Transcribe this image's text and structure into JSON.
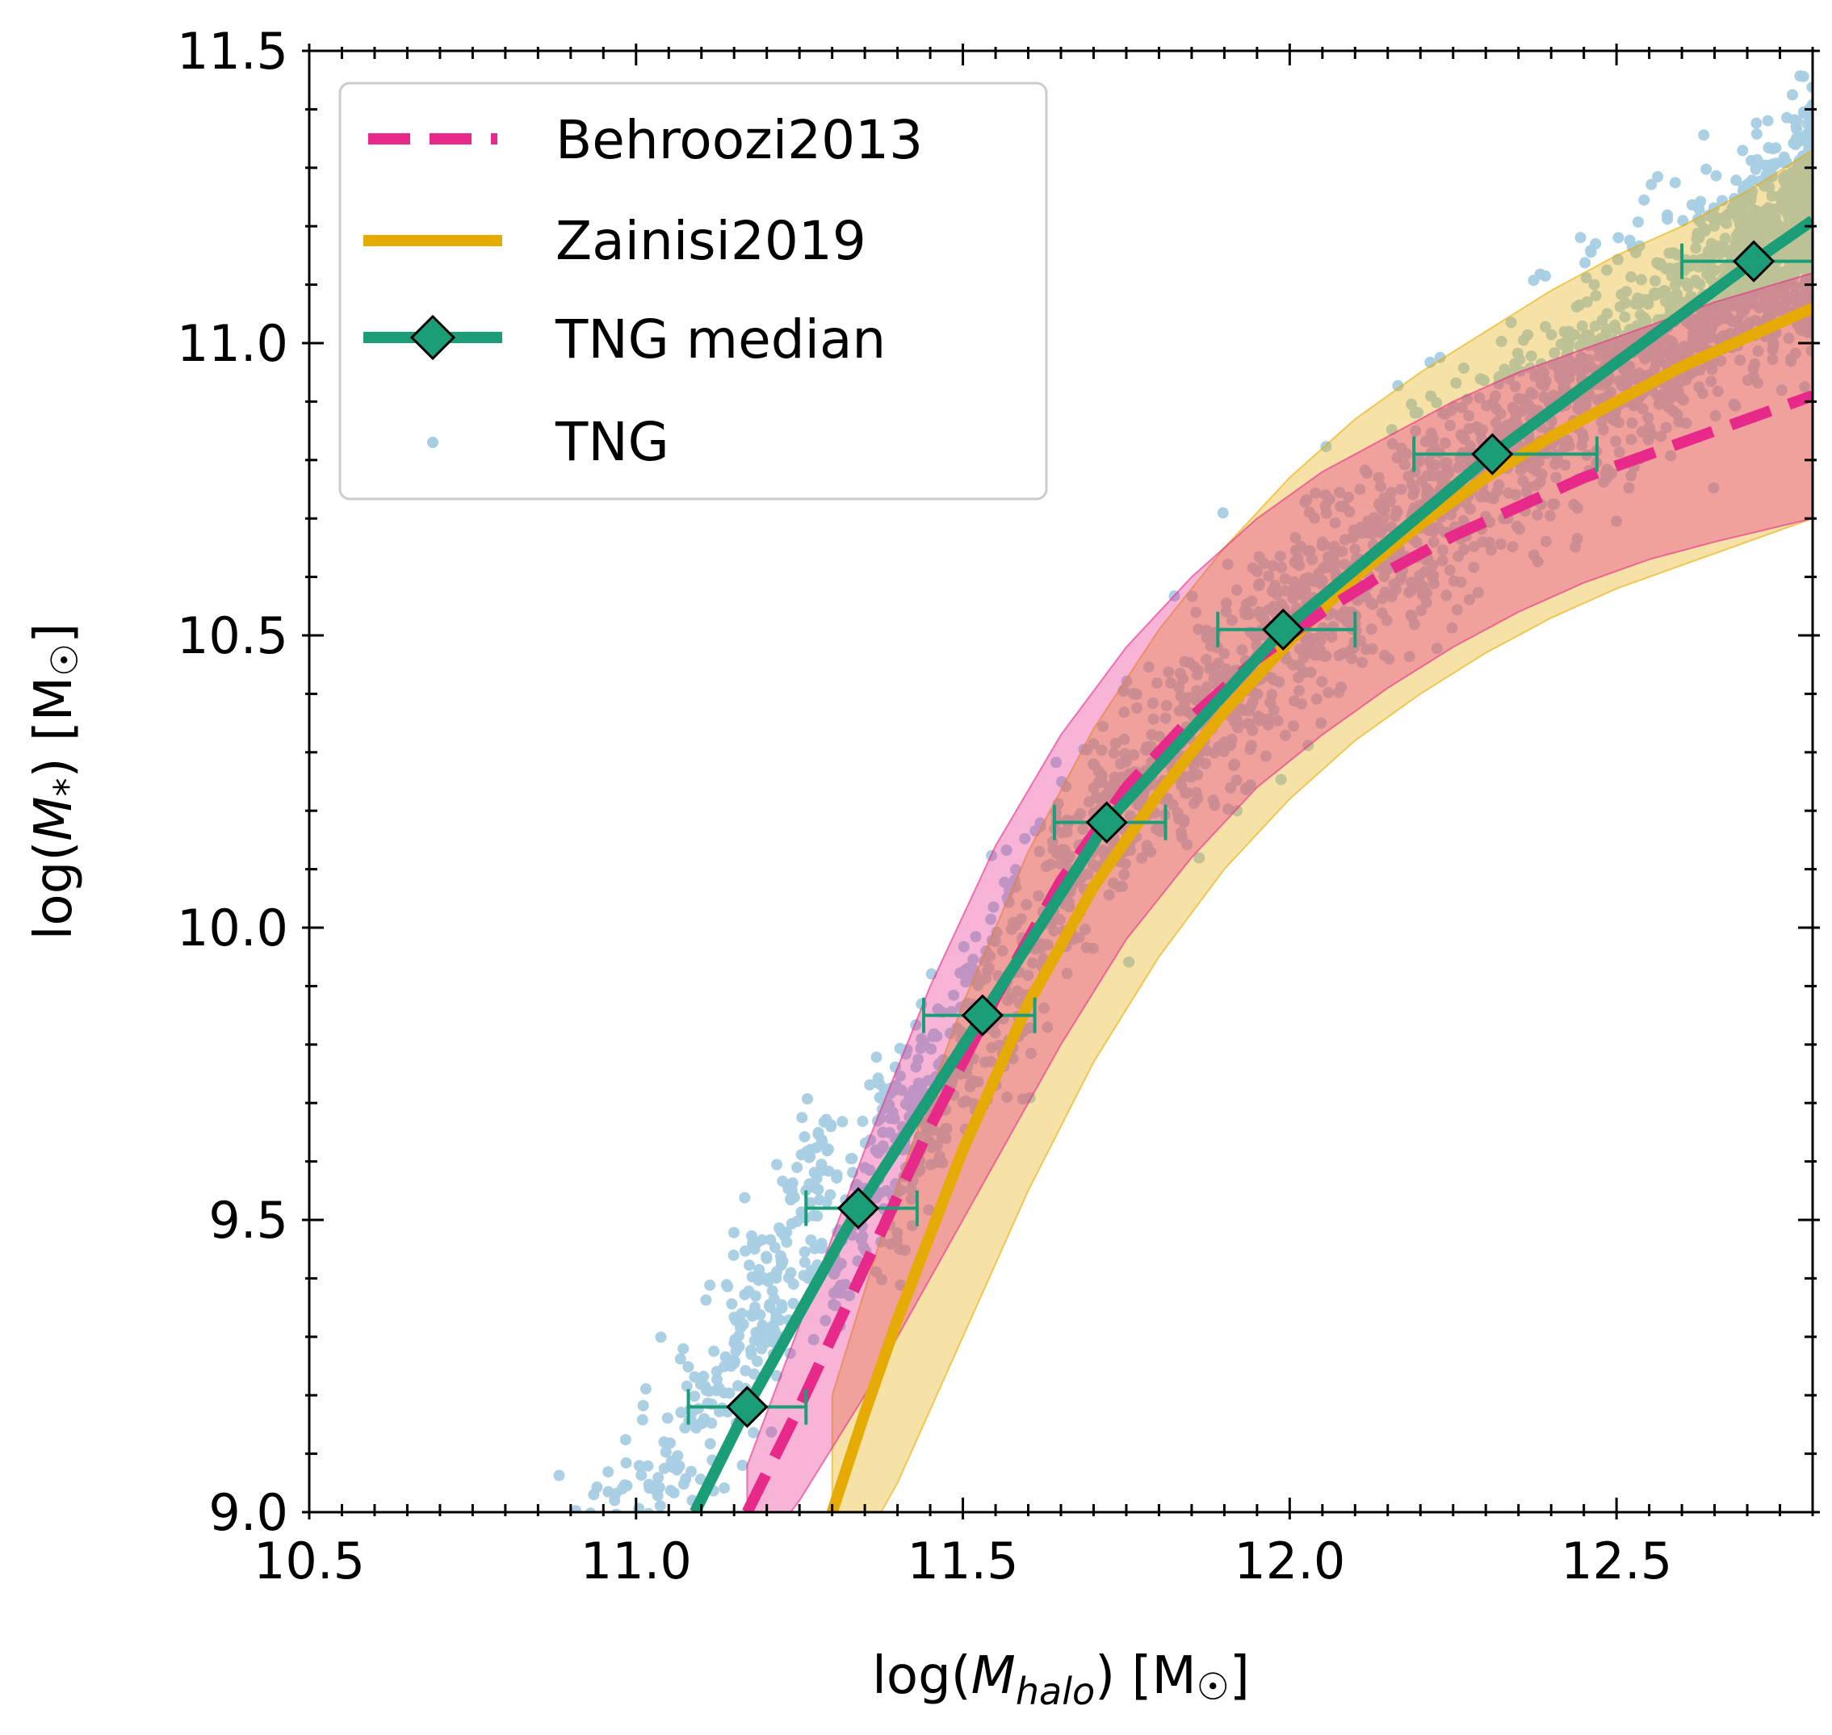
{
  "chart_data": {
    "type": "scatter",
    "xlabel": "log(M_halo) [M☉]",
    "ylabel": "log(M_*) [M☉]",
    "xlabel_parts": {
      "pre": "log(",
      "sym": "M",
      "sub": "halo",
      "post": ") [M",
      "sun": "☉",
      "end": "]"
    },
    "ylabel_parts": {
      "pre": "log(",
      "sym": "M",
      "sub": "*",
      "post": ") [M",
      "sun": "☉",
      "end": "]"
    },
    "xlim": [
      10.5,
      12.8
    ],
    "ylim": [
      9.0,
      11.5
    ],
    "xticks": [
      "10.5",
      "11.0",
      "11.5",
      "12.0",
      "12.5"
    ],
    "yticks": [
      "9.0",
      "9.5",
      "10.0",
      "10.5",
      "11.0",
      "11.5"
    ],
    "legend": {
      "position": "upper-left",
      "entries": [
        "Behroozi2013",
        "Zainisi2019",
        "TNG median",
        "TNG"
      ]
    },
    "colors": {
      "behroozi": "#e7298a",
      "zainisi": "#e6ab02",
      "median": "#1b9e77",
      "tng": "#a6cee3",
      "behroozi_band": "#e7298a",
      "zainisi_band": "#e6ab02"
    },
    "series": [
      {
        "name": "Behroozi2013",
        "style": "dashed",
        "x": [
          11.17,
          11.25,
          11.35,
          11.45,
          11.55,
          11.65,
          11.75,
          11.85,
          11.95,
          12.05,
          12.15,
          12.25,
          12.35,
          12.45,
          12.55,
          12.65,
          12.8
        ],
        "y": [
          9.0,
          9.18,
          9.42,
          9.66,
          9.88,
          10.08,
          10.24,
          10.36,
          10.46,
          10.54,
          10.61,
          10.67,
          10.72,
          10.77,
          10.81,
          10.85,
          10.91
        ],
        "band_lo": [
          8.9,
          9.02,
          9.2,
          9.4,
          9.6,
          9.8,
          9.98,
          10.12,
          10.24,
          10.33,
          10.41,
          10.48,
          10.54,
          10.59,
          10.63,
          10.66,
          10.7
        ],
        "band_hi": [
          9.08,
          9.32,
          9.62,
          9.9,
          10.14,
          10.33,
          10.48,
          10.6,
          10.7,
          10.78,
          10.84,
          10.9,
          10.95,
          10.99,
          11.03,
          11.07,
          11.12
        ]
      },
      {
        "name": "Zainisi2019",
        "style": "solid",
        "x": [
          11.3,
          11.35,
          11.4,
          11.5,
          11.6,
          11.7,
          11.8,
          11.9,
          12.0,
          12.1,
          12.2,
          12.3,
          12.4,
          12.5,
          12.6,
          12.7,
          12.8
        ],
        "y": [
          9.0,
          9.17,
          9.33,
          9.62,
          9.87,
          10.07,
          10.23,
          10.37,
          10.49,
          10.6,
          10.69,
          10.77,
          10.84,
          10.9,
          10.96,
          11.01,
          11.06
        ],
        "band_lo": [
          8.85,
          8.95,
          9.05,
          9.3,
          9.55,
          9.77,
          9.95,
          10.1,
          10.22,
          10.32,
          10.4,
          10.47,
          10.53,
          10.58,
          10.62,
          10.66,
          10.7
        ],
        "band_hi": [
          9.2,
          9.38,
          9.56,
          9.87,
          10.13,
          10.34,
          10.51,
          10.65,
          10.77,
          10.87,
          10.95,
          11.02,
          11.09,
          11.15,
          11.2,
          11.26,
          11.33
        ]
      },
      {
        "name": "TNG median",
        "style": "solid-marker",
        "x": [
          11.09,
          11.17,
          11.34,
          11.53,
          11.72,
          11.99,
          12.31,
          12.71,
          12.8
        ],
        "y": [
          9.0,
          9.18,
          9.52,
          9.85,
          10.18,
          10.51,
          10.81,
          11.14,
          11.21
        ],
        "markers_x": [
          11.17,
          11.34,
          11.53,
          11.72,
          11.99,
          12.31,
          12.71
        ],
        "markers_y": [
          9.18,
          9.52,
          9.85,
          10.18,
          10.51,
          10.81,
          11.14
        ],
        "xerr_lo": [
          11.08,
          11.26,
          11.44,
          11.64,
          11.89,
          12.19,
          12.6
        ],
        "xerr_hi": [
          11.26,
          11.43,
          11.61,
          11.81,
          12.1,
          12.47,
          12.85
        ]
      },
      {
        "name": "TNG",
        "style": "scatter",
        "relation": {
          "amp": 0.06,
          "offset": 0.3,
          "spread": 0.16,
          "xmin": 10.5,
          "xmax": 12.8
        }
      }
    ]
  }
}
